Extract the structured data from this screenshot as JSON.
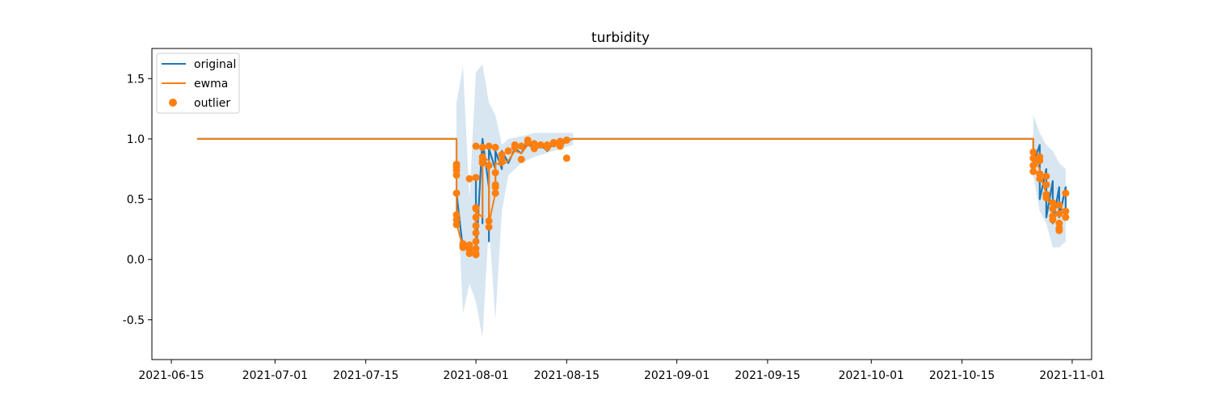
{
  "chart_data": {
    "type": "line",
    "title": "turbidity",
    "xlabel": "",
    "ylabel": "",
    "x_axis": {
      "type": "date",
      "range": [
        "2021-06-12",
        "2021-11-04"
      ],
      "ticks": [
        "2021-06-15",
        "2021-07-01",
        "2021-07-15",
        "2021-08-01",
        "2021-08-15",
        "2021-09-01",
        "2021-09-15",
        "2021-10-01",
        "2021-10-15",
        "2021-11-01"
      ]
    },
    "y_axis": {
      "range": [
        -0.83,
        1.75
      ],
      "ticks": [
        -0.5,
        0.0,
        0.5,
        1.0,
        1.5
      ],
      "tick_labels": [
        "-0.5",
        "0.0",
        "0.5",
        "1.0",
        "1.5"
      ]
    },
    "grid": false,
    "legend": {
      "placement": "top-left",
      "entries": [
        {
          "label": "original",
          "type": "line",
          "color": "#1f77b4"
        },
        {
          "label": "ewma",
          "type": "line",
          "color": "#ff7f0e"
        },
        {
          "label": "outlier",
          "type": "marker",
          "color": "#ff7f0e"
        }
      ]
    },
    "band": {
      "color": "#1f77b4",
      "opacity": 0.18,
      "points": [
        [
          "2021-07-29",
          0.7,
          1.3
        ],
        [
          "2021-07-30",
          -0.45,
          1.6
        ],
        [
          "2021-07-31",
          -0.2,
          0.5
        ],
        [
          "2021-08-01",
          -0.35,
          1.55
        ],
        [
          "2021-08-02",
          -0.65,
          1.62
        ],
        [
          "2021-08-03",
          0.3,
          1.3
        ],
        [
          "2021-08-04",
          -0.5,
          1.2
        ],
        [
          "2021-08-05",
          0.4,
          0.95
        ],
        [
          "2021-08-06",
          0.7,
          1.0
        ],
        [
          "2021-08-08",
          0.8,
          1.02
        ],
        [
          "2021-08-10",
          0.85,
          1.05
        ],
        [
          "2021-08-13",
          0.9,
          1.05
        ],
        [
          "2021-08-16",
          0.95,
          1.05
        ],
        [
          "2021-10-26",
          0.7,
          1.2
        ],
        [
          "2021-10-27",
          0.4,
          1.05
        ],
        [
          "2021-10-28",
          0.3,
          0.95
        ],
        [
          "2021-10-29",
          0.1,
          0.9
        ],
        [
          "2021-10-30",
          0.1,
          0.8
        ],
        [
          "2021-10-31",
          0.15,
          0.75
        ]
      ]
    },
    "series": [
      {
        "name": "original",
        "color": "#1f77b4",
        "points": [
          [
            "2021-06-19",
            1.0
          ],
          [
            "2021-07-29",
            1.0
          ],
          [
            "2021-07-29",
            0.55
          ],
          [
            "2021-07-30",
            0.08
          ],
          [
            "2021-07-31",
            0.12
          ],
          [
            "2021-07-31",
            0.06
          ],
          [
            "2021-08-01",
            0.05
          ],
          [
            "2021-08-01",
            0.65
          ],
          [
            "2021-08-01",
            0.02
          ],
          [
            "2021-08-02",
            1.0
          ],
          [
            "2021-08-02",
            0.3
          ],
          [
            "2021-08-02",
            1.0
          ],
          [
            "2021-08-03",
            0.6
          ],
          [
            "2021-08-03",
            0.15
          ],
          [
            "2021-08-03",
            0.92
          ],
          [
            "2021-08-04",
            0.75
          ],
          [
            "2021-08-04",
            0.55
          ],
          [
            "2021-08-04",
            0.9
          ],
          [
            "2021-08-05",
            0.75
          ],
          [
            "2021-08-05",
            0.9
          ],
          [
            "2021-08-06",
            0.8
          ],
          [
            "2021-08-07",
            0.92
          ],
          [
            "2021-08-08",
            0.88
          ],
          [
            "2021-08-09",
            0.98
          ],
          [
            "2021-08-10",
            0.9
          ],
          [
            "2021-08-11",
            0.95
          ],
          [
            "2021-08-12",
            0.9
          ],
          [
            "2021-08-13",
            0.97
          ],
          [
            "2021-08-14",
            0.93
          ],
          [
            "2021-08-15",
            0.99
          ],
          [
            "2021-08-16",
            1.0
          ],
          [
            "2021-10-26",
            1.0
          ],
          [
            "2021-10-26",
            0.8
          ],
          [
            "2021-10-27",
            0.95
          ],
          [
            "2021-10-27",
            0.5
          ],
          [
            "2021-10-28",
            0.75
          ],
          [
            "2021-10-28",
            0.35
          ],
          [
            "2021-10-29",
            0.65
          ],
          [
            "2021-10-29",
            0.3
          ],
          [
            "2021-10-30",
            0.6
          ],
          [
            "2021-10-30",
            0.35
          ],
          [
            "2021-10-31",
            0.6
          ],
          [
            "2021-10-31",
            0.38
          ]
        ]
      },
      {
        "name": "ewma",
        "color": "#ff7f0e",
        "points": [
          [
            "2021-06-19",
            1.0
          ],
          [
            "2021-07-29",
            1.0
          ],
          [
            "2021-07-29",
            0.6
          ],
          [
            "2021-07-29",
            0.3
          ],
          [
            "2021-07-30",
            0.1
          ],
          [
            "2021-07-31",
            0.1
          ],
          [
            "2021-08-01",
            0.07
          ],
          [
            "2021-08-01",
            0.4
          ],
          [
            "2021-08-02",
            0.35
          ],
          [
            "2021-08-02",
            0.85
          ],
          [
            "2021-08-03",
            0.82
          ],
          [
            "2021-08-03",
            0.3
          ],
          [
            "2021-08-04",
            0.55
          ],
          [
            "2021-08-04",
            0.8
          ],
          [
            "2021-08-05",
            0.78
          ],
          [
            "2021-08-06",
            0.82
          ],
          [
            "2021-08-07",
            0.9
          ],
          [
            "2021-08-08",
            0.88
          ],
          [
            "2021-08-09",
            0.95
          ],
          [
            "2021-08-10",
            0.92
          ],
          [
            "2021-08-11",
            0.94
          ],
          [
            "2021-08-12",
            0.93
          ],
          [
            "2021-08-13",
            0.96
          ],
          [
            "2021-08-14",
            0.95
          ],
          [
            "2021-08-15",
            0.98
          ],
          [
            "2021-08-16",
            1.0
          ],
          [
            "2021-10-26",
            1.0
          ],
          [
            "2021-10-26",
            0.85
          ],
          [
            "2021-10-27",
            0.75
          ],
          [
            "2021-10-27",
            0.7
          ],
          [
            "2021-10-28",
            0.55
          ],
          [
            "2021-10-28",
            0.5
          ],
          [
            "2021-10-29",
            0.45
          ],
          [
            "2021-10-30",
            0.45
          ],
          [
            "2021-10-31",
            0.38
          ]
        ]
      }
    ],
    "outliers": {
      "name": "outlier",
      "color": "#ff7f0e",
      "points": [
        [
          "2021-07-29",
          0.79
        ],
        [
          "2021-07-29",
          0.77
        ],
        [
          "2021-07-29",
          0.74
        ],
        [
          "2021-07-29",
          0.7
        ],
        [
          "2021-07-29",
          0.55
        ],
        [
          "2021-07-29",
          0.37
        ],
        [
          "2021-07-29",
          0.33
        ],
        [
          "2021-07-29",
          0.29
        ],
        [
          "2021-07-30",
          0.13
        ],
        [
          "2021-07-30",
          0.11
        ],
        [
          "2021-07-30",
          0.1
        ],
        [
          "2021-07-31",
          0.12
        ],
        [
          "2021-07-31",
          0.08
        ],
        [
          "2021-07-31",
          0.05
        ],
        [
          "2021-07-31",
          0.67
        ],
        [
          "2021-08-01",
          0.68
        ],
        [
          "2021-08-01",
          0.43
        ],
        [
          "2021-08-01",
          0.35
        ],
        [
          "2021-08-01",
          0.28
        ],
        [
          "2021-08-01",
          0.22
        ],
        [
          "2021-08-01",
          0.15
        ],
        [
          "2021-08-01",
          0.05
        ],
        [
          "2021-08-01",
          0.04
        ],
        [
          "2021-08-01",
          0.09
        ],
        [
          "2021-08-01",
          0.42
        ],
        [
          "2021-08-01",
          0.94
        ],
        [
          "2021-08-02",
          0.93
        ],
        [
          "2021-08-02",
          0.85
        ],
        [
          "2021-08-02",
          0.82
        ],
        [
          "2021-08-02",
          0.8
        ],
        [
          "2021-08-03",
          0.78
        ],
        [
          "2021-08-03",
          0.32
        ],
        [
          "2021-08-03",
          0.27
        ],
        [
          "2021-08-03",
          0.94
        ],
        [
          "2021-08-04",
          0.93
        ],
        [
          "2021-08-04",
          0.72
        ],
        [
          "2021-08-04",
          0.6
        ],
        [
          "2021-08-04",
          0.55
        ],
        [
          "2021-08-04",
          0.62
        ],
        [
          "2021-08-05",
          0.82
        ],
        [
          "2021-08-05",
          0.87
        ],
        [
          "2021-08-06",
          0.9
        ],
        [
          "2021-08-07",
          0.93
        ],
        [
          "2021-08-07",
          0.95
        ],
        [
          "2021-08-08",
          0.83
        ],
        [
          "2021-08-08",
          0.94
        ],
        [
          "2021-08-09",
          0.97
        ],
        [
          "2021-08-09",
          0.99
        ],
        [
          "2021-08-10",
          0.96
        ],
        [
          "2021-08-10",
          0.92
        ],
        [
          "2021-08-11",
          0.95
        ],
        [
          "2021-08-12",
          0.93
        ],
        [
          "2021-08-12",
          0.95
        ],
        [
          "2021-08-13",
          0.97
        ],
        [
          "2021-08-13",
          0.96
        ],
        [
          "2021-08-14",
          0.94
        ],
        [
          "2021-08-14",
          0.96
        ],
        [
          "2021-08-14",
          0.98
        ],
        [
          "2021-08-15",
          0.99
        ],
        [
          "2021-08-15",
          0.84
        ],
        [
          "2021-10-26",
          0.89
        ],
        [
          "2021-10-26",
          0.84
        ],
        [
          "2021-10-26",
          0.78
        ],
        [
          "2021-10-26",
          0.73
        ],
        [
          "2021-10-27",
          0.67
        ],
        [
          "2021-10-27",
          0.71
        ],
        [
          "2021-10-27",
          0.85
        ],
        [
          "2021-10-27",
          0.82
        ],
        [
          "2021-10-28",
          0.69
        ],
        [
          "2021-10-28",
          0.62
        ],
        [
          "2021-10-28",
          0.54
        ],
        [
          "2021-10-28",
          0.51
        ],
        [
          "2021-10-29",
          0.47
        ],
        [
          "2021-10-29",
          0.42
        ],
        [
          "2021-10-29",
          0.36
        ],
        [
          "2021-10-29",
          0.33
        ],
        [
          "2021-10-30",
          0.38
        ],
        [
          "2021-10-30",
          0.26
        ],
        [
          "2021-10-30",
          0.24
        ],
        [
          "2021-10-30",
          0.3
        ],
        [
          "2021-10-30",
          0.45
        ],
        [
          "2021-10-31",
          0.4
        ],
        [
          "2021-10-31",
          0.35
        ],
        [
          "2021-10-31",
          0.55
        ]
      ]
    }
  }
}
